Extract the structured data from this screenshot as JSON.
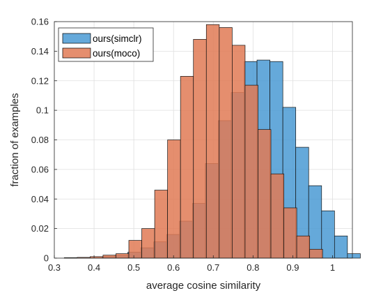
{
  "chart_data": {
    "type": "bar",
    "subtype": "overlapping-histogram",
    "xlabel": "average cosine similarity",
    "ylabel": "fraction of examples",
    "xlim": [
      0.3,
      1.05
    ],
    "ylim": [
      0,
      0.16
    ],
    "xticks": [
      0.3,
      0.4,
      0.5,
      0.6,
      0.7,
      0.8,
      0.9,
      1
    ],
    "yticks": [
      0,
      0.02,
      0.04,
      0.06,
      0.08,
      0.1,
      0.12,
      0.14,
      0.16
    ],
    "grid": true,
    "legend_position": "top-left",
    "series": [
      {
        "name": "ours(simclr)",
        "color": "#4a9ad4",
        "opacity": 0.85,
        "bin_width": 0.0325,
        "bins": [
          {
            "x0": 0.42,
            "y": 0.001
          },
          {
            "x0": 0.4525,
            "y": 0.002
          },
          {
            "x0": 0.485,
            "y": 0.004
          },
          {
            "x0": 0.5175,
            "y": 0.007
          },
          {
            "x0": 0.55,
            "y": 0.011
          },
          {
            "x0": 0.5825,
            "y": 0.016
          },
          {
            "x0": 0.615,
            "y": 0.025
          },
          {
            "x0": 0.6475,
            "y": 0.037
          },
          {
            "x0": 0.68,
            "y": 0.064
          },
          {
            "x0": 0.7125,
            "y": 0.093
          },
          {
            "x0": 0.745,
            "y": 0.112
          },
          {
            "x0": 0.7775,
            "y": 0.133
          },
          {
            "x0": 0.81,
            "y": 0.134
          },
          {
            "x0": 0.8425,
            "y": 0.133
          },
          {
            "x0": 0.875,
            "y": 0.102
          },
          {
            "x0": 0.9075,
            "y": 0.075
          },
          {
            "x0": 0.94,
            "y": 0.049
          },
          {
            "x0": 0.9725,
            "y": 0.032
          },
          {
            "x0": 1.005,
            "y": 0.015
          },
          {
            "x0": 1.0375,
            "y": 0.003
          }
        ]
      },
      {
        "name": "ours(moco)",
        "color": "#e07a55",
        "opacity": 0.85,
        "bin_width": 0.0325,
        "bins": [
          {
            "x0": 0.325,
            "y": 0.0003
          },
          {
            "x0": 0.3575,
            "y": 0.0005
          },
          {
            "x0": 0.39,
            "y": 0.001
          },
          {
            "x0": 0.4225,
            "y": 0.002
          },
          {
            "x0": 0.455,
            "y": 0.003
          },
          {
            "x0": 0.4875,
            "y": 0.012
          },
          {
            "x0": 0.52,
            "y": 0.02
          },
          {
            "x0": 0.5525,
            "y": 0.046
          },
          {
            "x0": 0.585,
            "y": 0.08
          },
          {
            "x0": 0.6175,
            "y": 0.123
          },
          {
            "x0": 0.65,
            "y": 0.148
          },
          {
            "x0": 0.6825,
            "y": 0.158
          },
          {
            "x0": 0.715,
            "y": 0.156
          },
          {
            "x0": 0.7475,
            "y": 0.144
          },
          {
            "x0": 0.78,
            "y": 0.117
          },
          {
            "x0": 0.8125,
            "y": 0.087
          },
          {
            "x0": 0.845,
            "y": 0.057
          },
          {
            "x0": 0.8775,
            "y": 0.034
          },
          {
            "x0": 0.91,
            "y": 0.015
          },
          {
            "x0": 0.9425,
            "y": 0.006
          }
        ]
      }
    ]
  }
}
